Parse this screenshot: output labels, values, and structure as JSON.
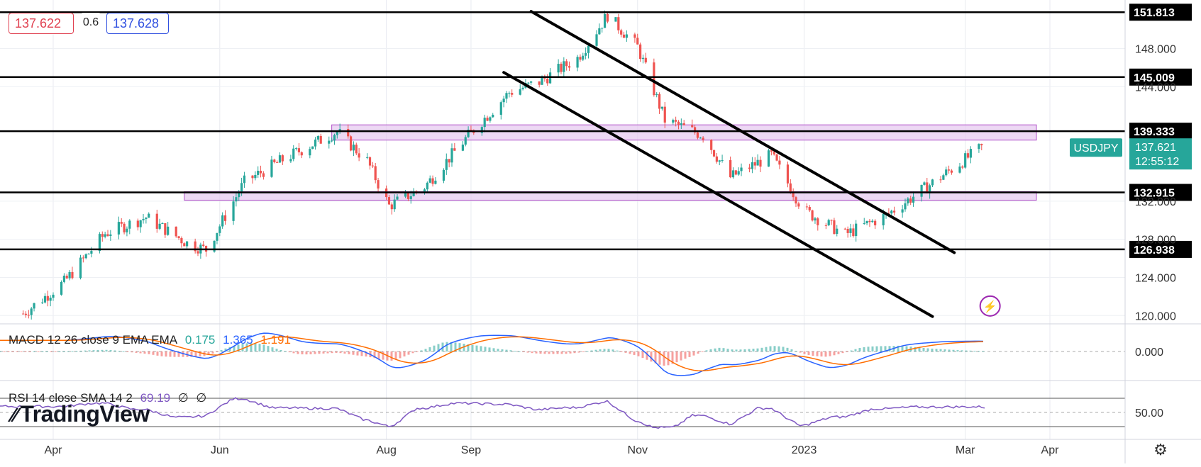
{
  "header": {
    "bid": "137.622",
    "spread": "0.6",
    "ask": "137.628"
  },
  "colors": {
    "up": "#26a69a",
    "down": "#ef5350",
    "zone": "#e6c8f0",
    "zone_border": "#b050c8",
    "macd": "#2962ff",
    "signal": "#ff6d00",
    "rsi": "#7e57c2",
    "symbol_tag": "#26a69a"
  },
  "chart_data": {
    "type": "candlestick",
    "symbol": "USDJPY",
    "last_price": "137.621",
    "countdown": "12:55:12",
    "y_ticks": [
      "151.813",
      "148.000",
      "145.009",
      "144.000",
      "139.333",
      "132.915",
      "132.000",
      "128.000",
      "126.938",
      "124.000",
      "120.000"
    ],
    "price_levels": [
      "151.813",
      "145.009",
      "139.333",
      "132.915",
      "126.938"
    ],
    "x_ticks": [
      "Apr",
      "Jun",
      "Aug",
      "Sep",
      "Nov",
      "2023",
      "Mar",
      "Apr"
    ],
    "ylim": [
      119.5,
      152.5
    ],
    "zones": [
      [
        138.4,
        140.0
      ],
      [
        132.1,
        133.0
      ]
    ],
    "channel_lines": [
      {
        "from": [
          "2022-09-23",
          151.9
        ],
        "to": [
          "2023-02-25",
          126.6
        ]
      },
      {
        "from": [
          "2022-09-13",
          145.5
        ],
        "to": [
          "2023-02-17",
          119.9
        ]
      }
    ],
    "close_path": {
      "dates": [
        "2022-03-21",
        "2022-04-05",
        "2022-04-20",
        "2022-05-05",
        "2022-05-20",
        "2022-05-27",
        "2022-06-10",
        "2022-06-25",
        "2022-07-14",
        "2022-07-25",
        "2022-08-02",
        "2022-08-15",
        "2022-09-01",
        "2022-09-15",
        "2022-09-26",
        "2022-10-10",
        "2022-10-21",
        "2022-11-01",
        "2022-11-11",
        "2022-11-25",
        "2022-12-05",
        "2022-12-20",
        "2023-01-01",
        "2023-01-16",
        "2023-01-31",
        "2023-02-15",
        "2023-03-07"
      ],
      "values": [
        120.2,
        123.5,
        128.6,
        130.3,
        127.6,
        126.9,
        134.0,
        136.5,
        139.3,
        136.2,
        131.5,
        133.5,
        139.2,
        143.4,
        144.5,
        147.0,
        151.5,
        148.2,
        140.5,
        138.9,
        134.5,
        136.8,
        131.0,
        128.5,
        130.5,
        133.5,
        137.62
      ]
    },
    "macd": {
      "label": "MACD 12 26 close 9 EMA EMA",
      "histogram": "0.175",
      "macd": "1.365",
      "signal": "1.191",
      "y_ticks": [
        "0.000"
      ]
    },
    "rsi": {
      "label": "RSI 14 close SMA 14 2",
      "value": "69.19",
      "extra1": "∅",
      "extra2": "∅",
      "y_ticks": [
        "50.00"
      ]
    }
  },
  "branding": {
    "logo": "TradingView"
  }
}
